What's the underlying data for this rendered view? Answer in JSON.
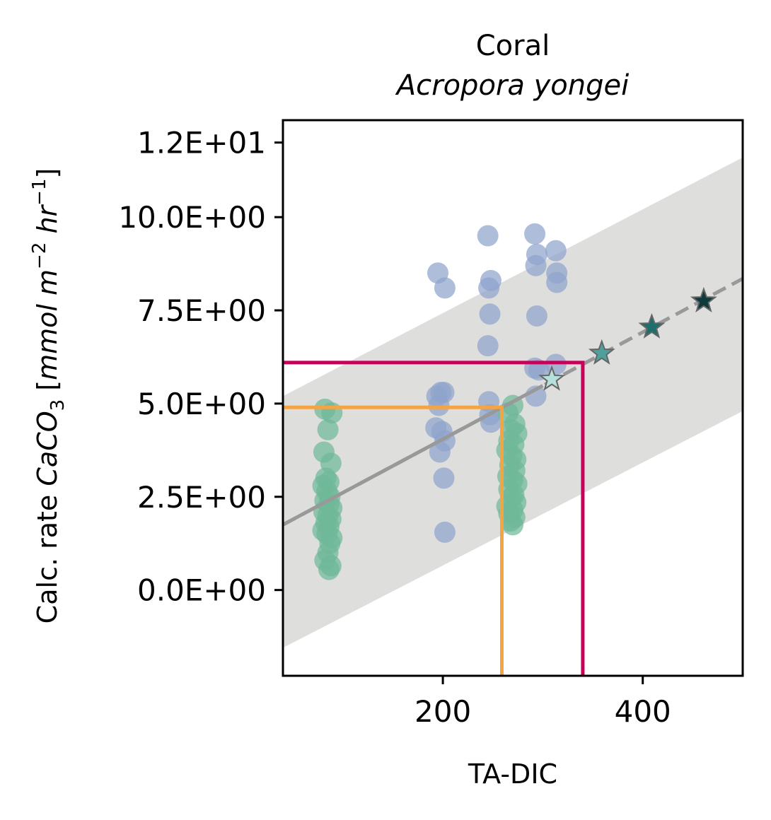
{
  "chart_data": {
    "type": "scatter",
    "title": "Coral",
    "subtitle": "Acropora yongei",
    "xlabel": "TA-DIC",
    "ylabel": {
      "prefix": "Calc. rate ",
      "chem_main": "CaCO",
      "chem_sub": "3",
      "bracket_open": " [",
      "unit_mmol": "mmol m",
      "exp1": "−2",
      "unit_hr": " hr",
      "exp2": "−1",
      "bracket_close": "]"
    },
    "xlim": [
      40,
      500
    ],
    "ylim": [
      -2.3,
      12.6
    ],
    "xticks": [
      200,
      400
    ],
    "xtick_labels": [
      "200",
      "400"
    ],
    "yticks": [
      0,
      2.5,
      5,
      7.5,
      10,
      12
    ],
    "ytick_labels": [
      "0.0E+00",
      "2.5E+00",
      "5.0E+00",
      "7.5E+00",
      "10.0E+00",
      "1.2E+01"
    ],
    "grid": false,
    "legend": "none",
    "prediction_band": {
      "x": [
        40,
        500
      ],
      "lower": [
        -1.55,
        4.8
      ],
      "upper": [
        5.2,
        11.6
      ],
      "color": "#dededd"
    },
    "regression": {
      "x": [
        40,
        500
      ],
      "y": [
        1.75,
        8.35
      ],
      "solid_range": [
        40,
        300
      ],
      "color": "#999999"
    },
    "blue_points": {
      "color": "#8fa3cc",
      "points": [
        [
          195,
          8.5
        ],
        [
          202,
          8.1
        ],
        [
          194,
          5.2
        ],
        [
          198,
          5.3
        ],
        [
          201,
          5.3
        ],
        [
          196,
          4.95
        ],
        [
          193,
          4.35
        ],
        [
          199,
          4.25
        ],
        [
          202,
          4.0
        ],
        [
          197,
          3.7
        ],
        [
          201,
          3.0
        ],
        [
          202,
          1.55
        ],
        [
          245,
          9.5
        ],
        [
          248,
          8.3
        ],
        [
          246,
          8.1
        ],
        [
          247,
          7.4
        ],
        [
          245,
          6.55
        ],
        [
          246,
          5.05
        ],
        [
          247,
          4.7
        ],
        [
          248,
          4.5
        ],
        [
          292,
          9.55
        ],
        [
          294,
          9.0
        ],
        [
          293,
          8.7
        ],
        [
          313,
          9.1
        ],
        [
          314,
          8.5
        ],
        [
          314,
          8.25
        ],
        [
          294,
          7.35
        ],
        [
          292,
          5.95
        ],
        [
          296,
          5.9
        ],
        [
          313,
          6.05
        ],
        [
          293,
          5.2
        ]
      ]
    },
    "green_points": {
      "color": "#6fb899",
      "points": [
        [
          82,
          4.85
        ],
        [
          89,
          4.75
        ],
        [
          85,
          4.3
        ],
        [
          81,
          3.7
        ],
        [
          88,
          3.4
        ],
        [
          83,
          3.0
        ],
        [
          86,
          2.9
        ],
        [
          80,
          2.8
        ],
        [
          84,
          2.65
        ],
        [
          87,
          2.5
        ],
        [
          82,
          2.4
        ],
        [
          86,
          2.3
        ],
        [
          89,
          2.2
        ],
        [
          81,
          2.1
        ],
        [
          85,
          2.0
        ],
        [
          88,
          1.9
        ],
        [
          83,
          1.8
        ],
        [
          86,
          1.7
        ],
        [
          80,
          1.6
        ],
        [
          84,
          1.5
        ],
        [
          89,
          1.4
        ],
        [
          87,
          1.25
        ],
        [
          85,
          1.0
        ],
        [
          82,
          0.8
        ],
        [
          88,
          0.65
        ],
        [
          86,
          0.55
        ],
        [
          270,
          4.95
        ],
        [
          265,
          4.75
        ],
        [
          272,
          4.45
        ],
        [
          268,
          4.3
        ],
        [
          274,
          4.2
        ],
        [
          266,
          4.0
        ],
        [
          271,
          3.9
        ],
        [
          264,
          3.75
        ],
        [
          269,
          3.6
        ],
        [
          273,
          3.5
        ],
        [
          267,
          3.35
        ],
        [
          272,
          3.2
        ],
        [
          265,
          3.05
        ],
        [
          270,
          2.95
        ],
        [
          274,
          2.85
        ],
        [
          266,
          2.7
        ],
        [
          271,
          2.55
        ],
        [
          268,
          2.45
        ],
        [
          273,
          2.35
        ],
        [
          264,
          2.25
        ],
        [
          270,
          2.15
        ],
        [
          266,
          2.05
        ],
        [
          272,
          1.95
        ],
        [
          268,
          1.85
        ],
        [
          270,
          1.75
        ]
      ]
    },
    "guide_lines": [
      {
        "color": "#f5a443",
        "x": 259,
        "y": 4.9
      },
      {
        "color": "#c8005a",
        "x": 340,
        "y": 6.1
      }
    ],
    "stars": [
      {
        "x": 309,
        "y": 5.65,
        "color": "#b6e0dc"
      },
      {
        "x": 359,
        "y": 6.35,
        "color": "#4f9f9c"
      },
      {
        "x": 409,
        "y": 7.05,
        "color": "#1e6e6e"
      },
      {
        "x": 461,
        "y": 7.75,
        "color": "#0e3b3b"
      }
    ]
  }
}
